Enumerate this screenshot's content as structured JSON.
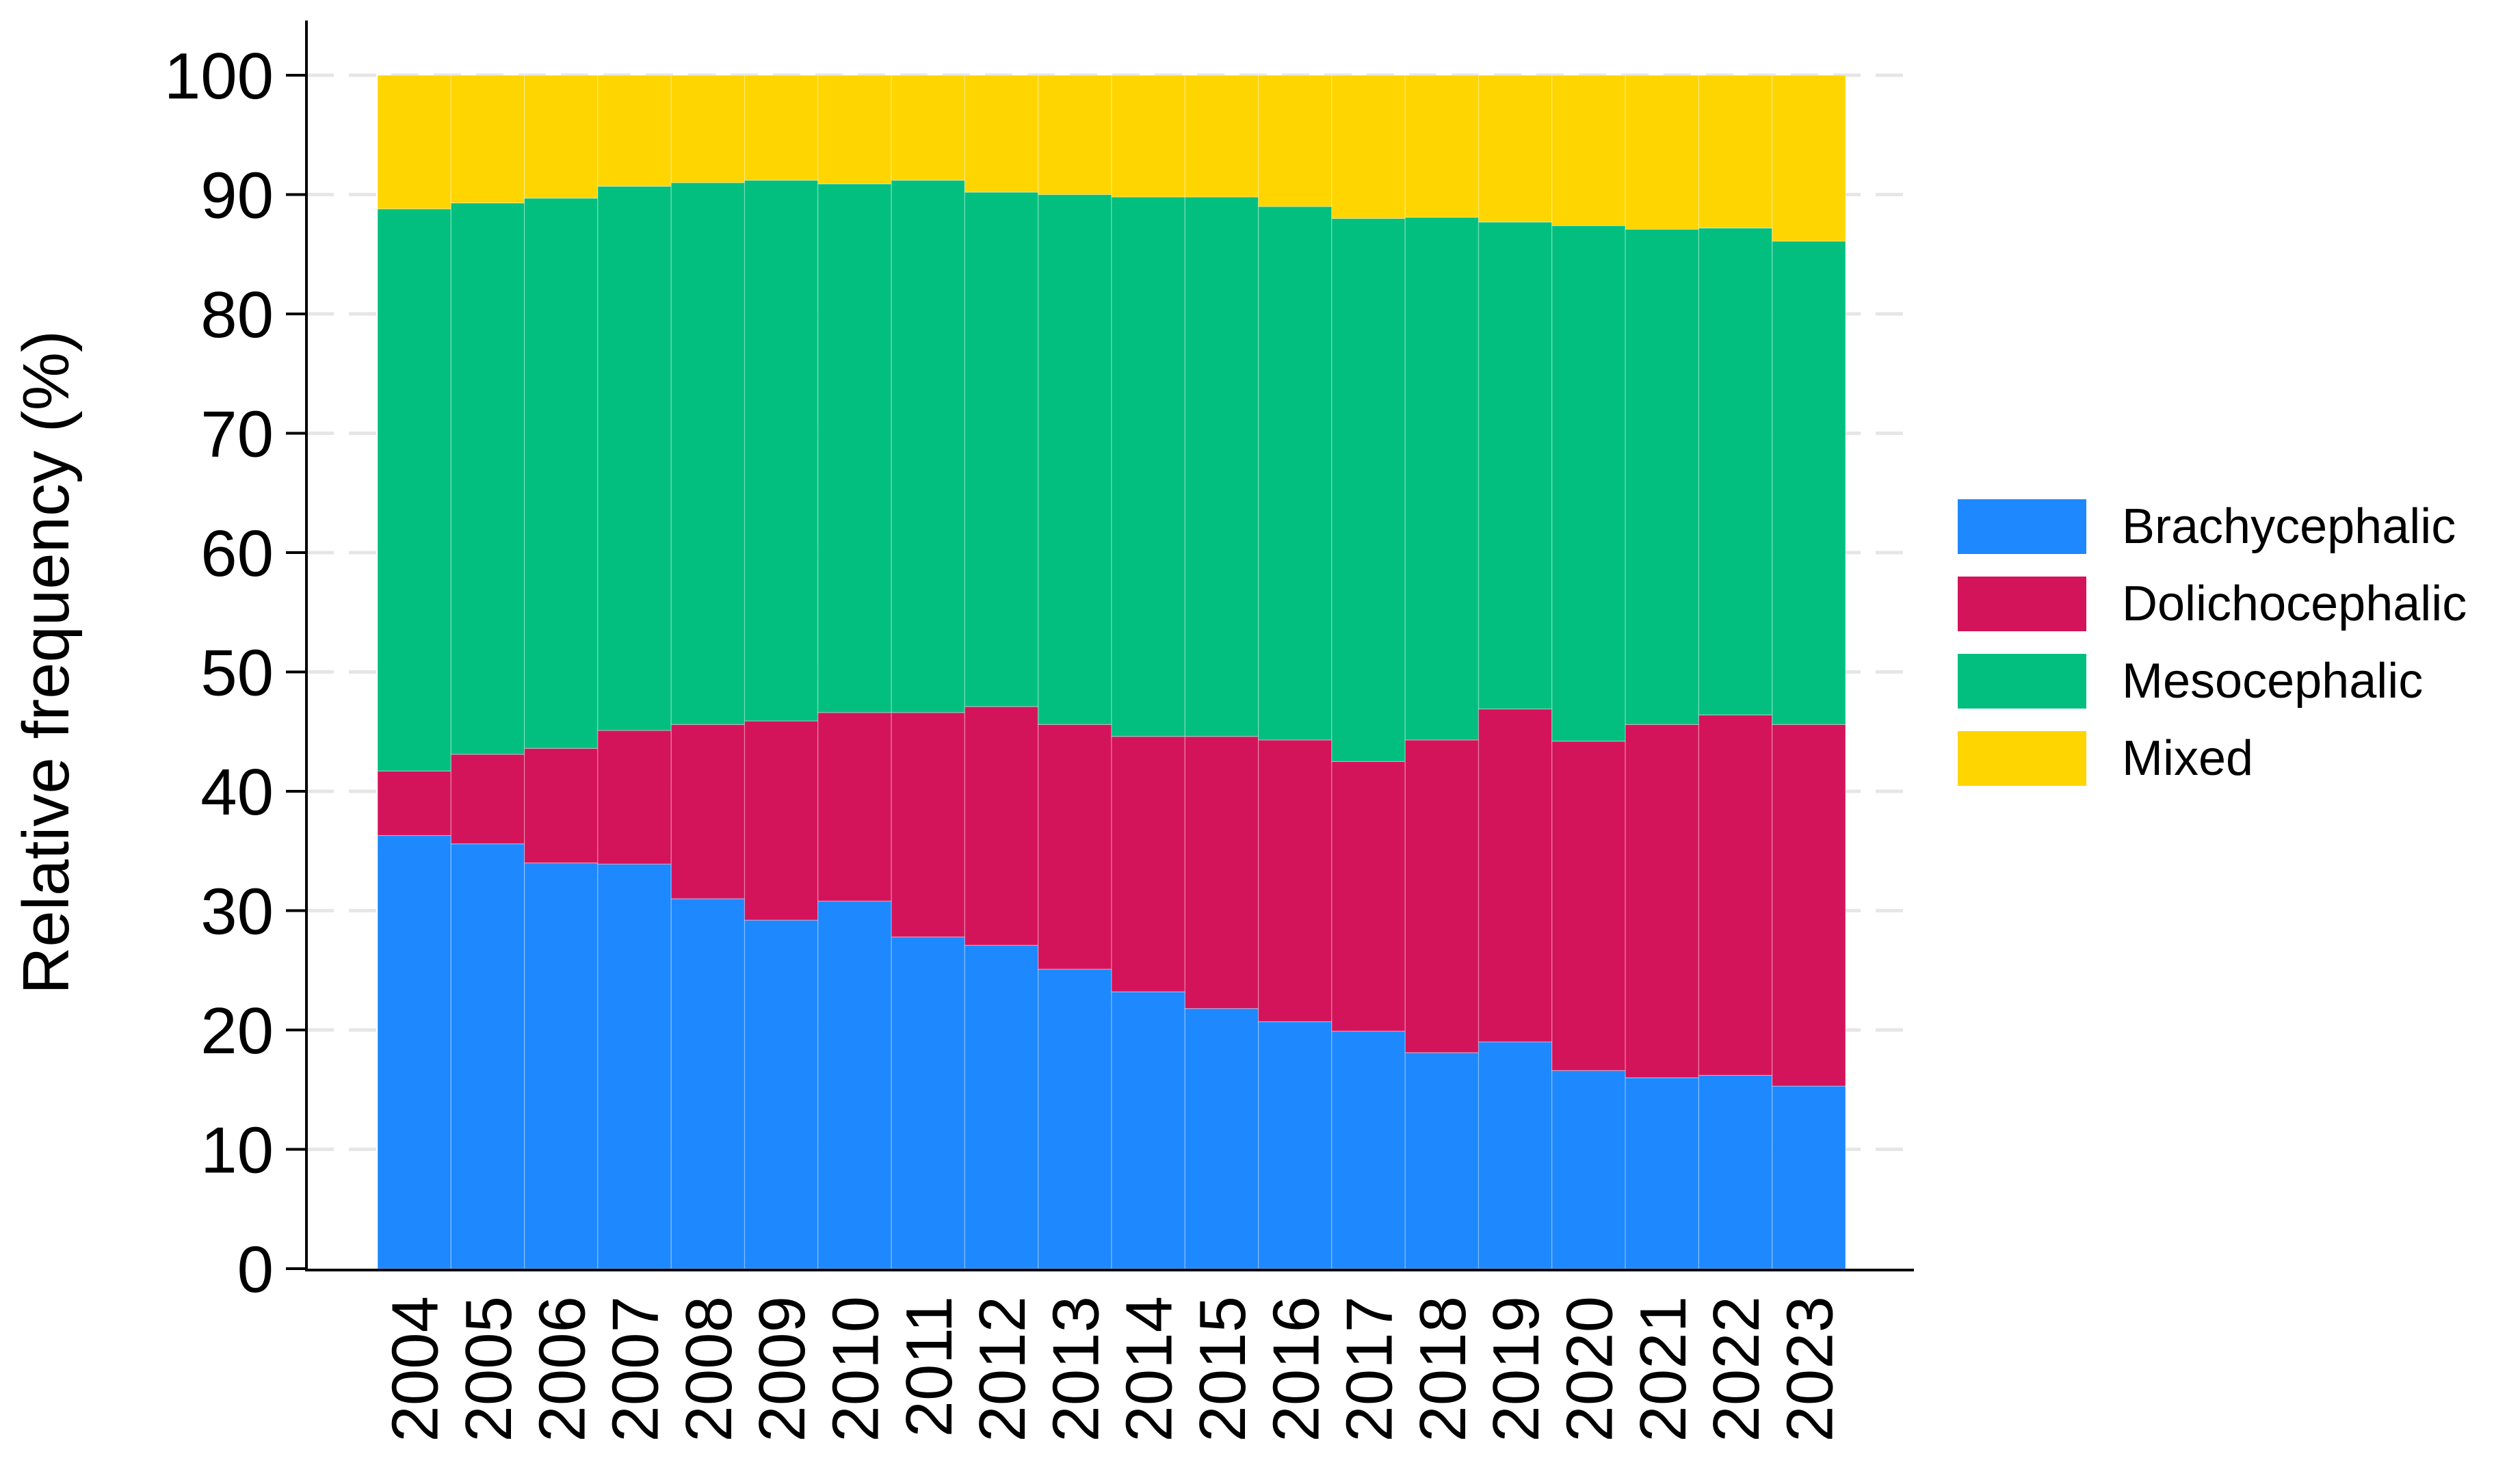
{
  "chart_data": {
    "type": "bar",
    "stacked": true,
    "categories": [
      "2004",
      "2005",
      "2006",
      "2007",
      "2008",
      "2009",
      "2010",
      "2011",
      "2012",
      "2013",
      "2014",
      "2015",
      "2016",
      "2017",
      "2018",
      "2019",
      "2020",
      "2021",
      "2022",
      "2023"
    ],
    "series": [
      {
        "name": "Brachycephalic",
        "color": "#1E88FF",
        "values": [
          36.3,
          35.6,
          34.0,
          33.9,
          31.0,
          29.2,
          30.8,
          27.8,
          27.1,
          25.1,
          23.2,
          21.8,
          20.7,
          19.9,
          18.1,
          19.0,
          16.6,
          16.0,
          16.2,
          15.3
        ]
      },
      {
        "name": "Dolichocephalic",
        "color": "#D4145A",
        "values": [
          5.4,
          7.5,
          9.6,
          11.2,
          14.6,
          16.7,
          15.8,
          18.8,
          20.0,
          20.5,
          21.4,
          22.8,
          23.6,
          22.6,
          26.2,
          27.9,
          27.6,
          29.6,
          30.2,
          30.3
        ]
      },
      {
        "name": "Mesocephalic",
        "color": "#02BF7F",
        "values": [
          47.1,
          46.2,
          46.1,
          45.6,
          45.4,
          45.3,
          44.3,
          44.6,
          43.1,
          44.4,
          45.2,
          45.2,
          44.7,
          45.5,
          43.8,
          40.8,
          43.2,
          41.5,
          40.8,
          40.5
        ]
      },
      {
        "name": "Mixed",
        "color": "#FFD500",
        "values": [
          11.2,
          10.7,
          10.3,
          9.3,
          9.0,
          8.8,
          9.1,
          8.8,
          9.8,
          10.0,
          10.2,
          10.2,
          11.0,
          12.0,
          11.9,
          12.3,
          12.6,
          12.9,
          12.8,
          13.9
        ]
      }
    ],
    "ylabel": "Relative frequency (%)",
    "xlabel": "",
    "ylim": [
      0,
      100
    ],
    "yticks": [
      0,
      10,
      20,
      30,
      40,
      50,
      60,
      70,
      80,
      90,
      100
    ],
    "grid": "horizontal dashed",
    "legend_position": "right"
  }
}
